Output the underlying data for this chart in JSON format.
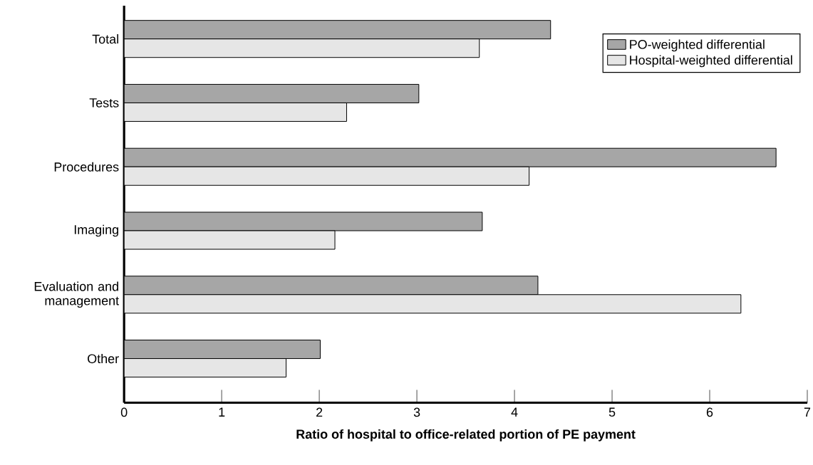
{
  "chart_data": {
    "type": "bar",
    "orientation": "horizontal",
    "xlabel": "Ratio of hospital to office-related portion of PE payment",
    "categories": [
      "Total",
      "Tests",
      "Procedures",
      "Imaging",
      "Evaluation and management",
      "Other"
    ],
    "series": [
      {
        "name": "PO-weighted differential",
        "color": "#a6a6a6",
        "values": [
          4.37,
          3.02,
          6.68,
          3.67,
          4.24,
          2.01
        ]
      },
      {
        "name": "Hospital-weighted differential",
        "color": "#e6e6e6",
        "values": [
          3.64,
          2.28,
          4.15,
          2.16,
          6.32,
          1.66
        ]
      }
    ],
    "xlim": [
      0,
      7
    ],
    "xticks": [
      0,
      1,
      2,
      3,
      4,
      5,
      6,
      7
    ],
    "legend": "top right",
    "grid": false
  }
}
